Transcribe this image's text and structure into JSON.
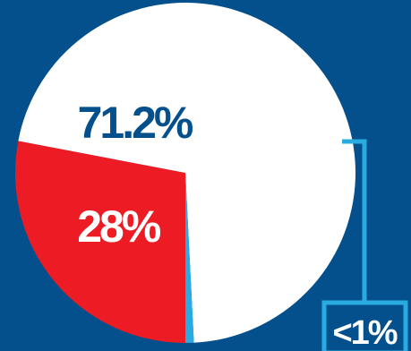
{
  "chart_data": {
    "type": "pie",
    "start_angle_deg": 0,
    "direction": "clockwise",
    "slices": [
      {
        "label": "28%",
        "value": 28.0,
        "color": "#ed1c24",
        "label_color": "#ffffff"
      },
      {
        "label": "71.2%",
        "value": 71.2,
        "color": "#ffffff",
        "label_color": "#03508c"
      },
      {
        "label": "<1%",
        "value": 0.8,
        "color": "#29abe2",
        "label_color": "#ffffff"
      }
    ]
  },
  "colors": {
    "background": "#03508c",
    "callout": "#29abe2"
  }
}
